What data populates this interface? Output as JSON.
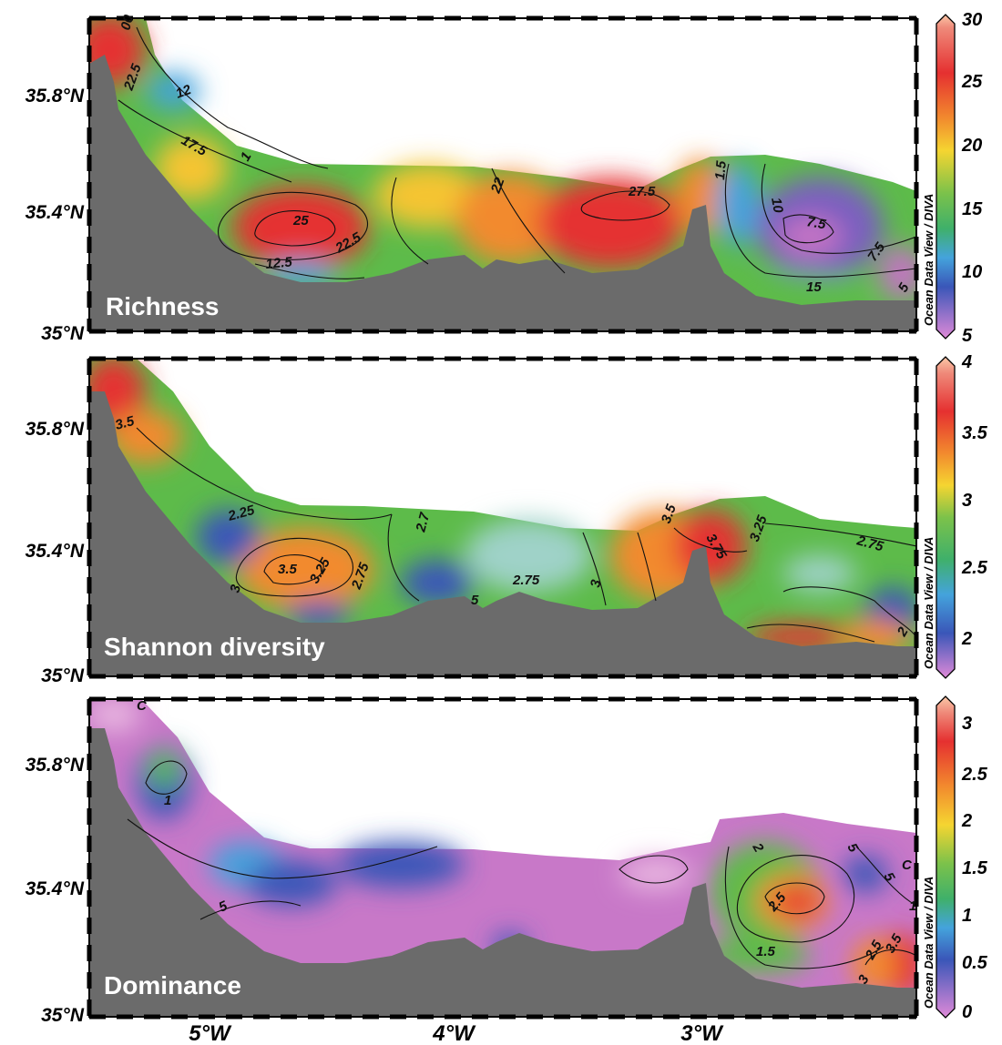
{
  "figure": {
    "x_tick_labels": [
      "5°W",
      "4°W",
      "3°W"
    ],
    "y_tick_labels": [
      "35.8°N",
      "35.4°N",
      "35°N"
    ],
    "colorbar_credit": "Ocean Data View / DIVA",
    "land_color": "#6b6b6b"
  },
  "panels": [
    {
      "label": "Richness",
      "colorbar_ticks": [
        "30",
        "25",
        "20",
        "15",
        "10",
        "5"
      ],
      "contour_labels": [
        "00",
        "22.5",
        "12",
        "17.5",
        "1",
        "22",
        "27.5",
        "1.5",
        "10",
        "7.5",
        "7.5",
        "25",
        "22.5",
        "2.5",
        "12.5",
        "15",
        "5"
      ],
      "blobs": [
        {
          "color": "#e53030",
          "level": "high"
        },
        {
          "color": "#f28a2e",
          "level": "mid-high"
        },
        {
          "color": "#f5c531",
          "level": "mid"
        },
        {
          "color": "#5dbb4a",
          "level": "mid-low"
        },
        {
          "color": "#44a3dc",
          "level": "low"
        },
        {
          "color": "#c473c4",
          "level": "very-low"
        }
      ]
    },
    {
      "label": "Shannon diversity",
      "colorbar_ticks": [
        "4",
        "3.5",
        "3",
        "2.5",
        "2"
      ],
      "contour_labels": [
        "3.5",
        "2.25",
        "2.7",
        "3.5",
        "3.75",
        "3.25",
        "2.75",
        "3.5",
        "3.25",
        "2.75",
        "3",
        "2.75",
        "3",
        "5",
        "2"
      ],
      "blobs": [
        {
          "color": "#e53030",
          "level": "high"
        },
        {
          "color": "#f28a2e",
          "level": "mid-high"
        },
        {
          "color": "#5dbb4a",
          "level": "mid"
        },
        {
          "color": "#9fd2c8",
          "level": "mid-low"
        },
        {
          "color": "#3a56b8",
          "level": "low"
        }
      ]
    },
    {
      "label": "Dominance",
      "colorbar_ticks": [
        "3",
        "2.5",
        "2",
        "1.5",
        "1",
        "0.5",
        "0"
      ],
      "contour_labels": [
        "C",
        "1",
        "5",
        "2",
        "5",
        "5",
        "C",
        "2.5",
        "1.5",
        "2.5",
        "3.5",
        "3",
        "1"
      ],
      "blobs": [
        {
          "color": "#c878c8",
          "level": "very-low"
        },
        {
          "color": "#3a56b8",
          "level": "low"
        },
        {
          "color": "#5dbb4a",
          "level": "mid"
        },
        {
          "color": "#f28a2e",
          "level": "high"
        },
        {
          "color": "#e53030",
          "level": "very-high"
        }
      ]
    }
  ]
}
